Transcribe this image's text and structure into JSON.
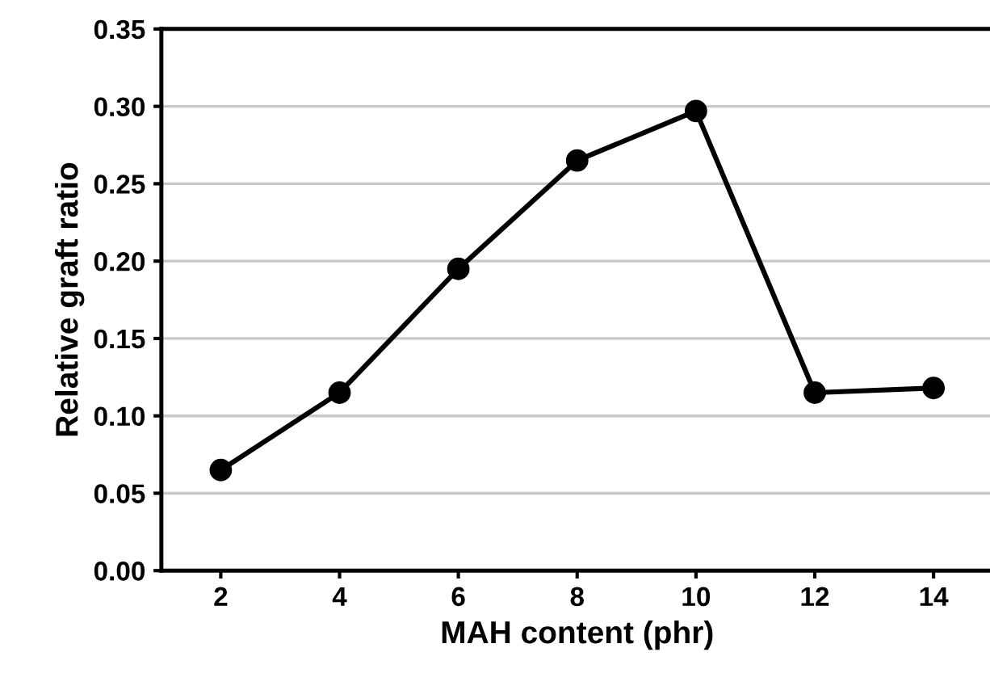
{
  "chart_data": {
    "type": "line",
    "xlabel": "MAH content (phr)",
    "ylabel": "Relative graft ratio",
    "categories": [
      "2",
      "4",
      "6",
      "8",
      "10",
      "12",
      "14"
    ],
    "series": [
      {
        "color": "#000000",
        "values": [
          0.065,
          0.115,
          0.195,
          0.265,
          0.297,
          0.115,
          0.118
        ]
      }
    ],
    "ylim": [
      0,
      0.35
    ],
    "yticks": [
      {
        "value": 0,
        "label": "0.00"
      },
      {
        "value": 0.05,
        "label": "0.05"
      },
      {
        "value": 0.1,
        "label": "0.10"
      },
      {
        "value": 0.15,
        "label": "0.15"
      },
      {
        "value": 0.2,
        "label": "0.20"
      },
      {
        "value": 0.25,
        "label": "0.25"
      },
      {
        "value": 0.3,
        "label": "0.30"
      },
      {
        "value": 0.35,
        "label": "0.35"
      }
    ],
    "grid": "y",
    "marker": "circle",
    "line_style": "solid"
  }
}
